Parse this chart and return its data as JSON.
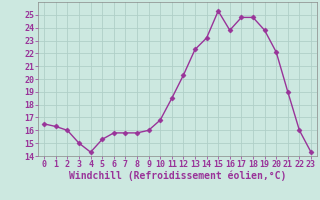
{
  "x": [
    0,
    1,
    2,
    3,
    4,
    5,
    6,
    7,
    8,
    9,
    10,
    11,
    12,
    13,
    14,
    15,
    16,
    17,
    18,
    19,
    20,
    21,
    22,
    23
  ],
  "y": [
    16.5,
    16.3,
    16.0,
    15.0,
    14.3,
    15.3,
    15.8,
    15.8,
    15.8,
    16.0,
    16.8,
    18.5,
    20.3,
    22.3,
    23.2,
    25.3,
    23.8,
    24.8,
    24.8,
    23.8,
    22.1,
    19.0,
    16.0,
    14.3
  ],
  "line_color": "#993399",
  "marker": "D",
  "markersize": 2.5,
  "linewidth": 1.0,
  "xlabel": "Windchill (Refroidissement éolien,°C)",
  "xlabel_fontsize": 7.0,
  "background_color": "#cce8e0",
  "grid_color": "#b0cfc8",
  "ylim": [
    14,
    26
  ],
  "yticks": [
    14,
    15,
    16,
    17,
    18,
    19,
    20,
    21,
    22,
    23,
    24,
    25
  ],
  "xticks": [
    0,
    1,
    2,
    3,
    4,
    5,
    6,
    7,
    8,
    9,
    10,
    11,
    12,
    13,
    14,
    15,
    16,
    17,
    18,
    19,
    20,
    21,
    22,
    23
  ],
  "tick_fontsize": 6.0,
  "tick_color": "#993399",
  "axis_color": "#993399",
  "spine_color": "#888888"
}
